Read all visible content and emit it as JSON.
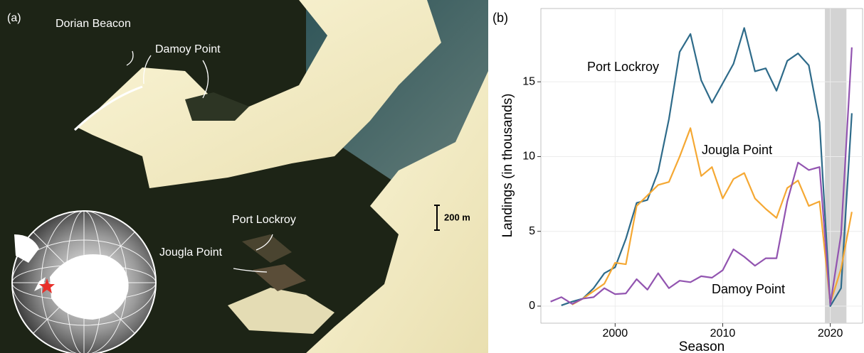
{
  "map_panel": {
    "panel_label": "(a)",
    "labels": [
      "Dorian Beacon",
      "Damoy Point",
      "Port Lockroy",
      "Jougla Point"
    ],
    "scale_bar": "200 m"
  },
  "chart_data": {
    "type": "line",
    "panel_label": "(b)",
    "x_label": "Season",
    "y_label": "Landings (in thousands)",
    "x": [
      1994,
      1995,
      1996,
      1997,
      1998,
      1999,
      2000,
      2001,
      2002,
      2003,
      2004,
      2005,
      2006,
      2007,
      2008,
      2009,
      2010,
      2011,
      2012,
      2013,
      2014,
      2015,
      2016,
      2017,
      2018,
      2019,
      2020,
      2021,
      2022
    ],
    "series": [
      {
        "name": "Port Lockroy",
        "color": "#2e6b8a",
        "values": [
          null,
          0.05,
          0.3,
          0.5,
          1.2,
          2.2,
          2.6,
          4.5,
          6.9,
          7.1,
          9.0,
          12.5,
          17.0,
          18.2,
          15.1,
          13.6,
          14.9,
          16.2,
          18.6,
          15.7,
          15.9,
          14.4,
          16.4,
          16.9,
          16.1,
          12.3,
          0,
          1.2,
          12.9
        ]
      },
      {
        "name": "Jougla Point",
        "color": "#f5a833",
        "values": [
          null,
          null,
          0.1,
          0.5,
          1.0,
          1.5,
          2.9,
          2.8,
          6.7,
          7.4,
          8.1,
          8.3,
          10.0,
          11.9,
          8.7,
          9.3,
          7.2,
          8.5,
          8.9,
          7.2,
          6.5,
          5.9,
          7.9,
          8.4,
          6.7,
          7.0,
          0.2,
          2.5,
          6.3
        ]
      },
      {
        "name": "Damoy Point",
        "color": "#9254b0",
        "values": [
          0.3,
          0.6,
          0.15,
          0.5,
          0.6,
          1.2,
          0.8,
          0.85,
          1.8,
          1.1,
          2.2,
          1.2,
          1.7,
          1.6,
          2.0,
          1.9,
          2.4,
          3.8,
          3.3,
          2.7,
          3.2,
          3.2,
          7.0,
          9.6,
          9.1,
          9.3,
          0.1,
          4.8,
          17.3
        ]
      }
    ],
    "highlight_x": [
      2019.5,
      2021.5
    ],
    "xlim": [
      1993.1,
      2023.0
    ],
    "ylim": [
      -1.14,
      19.9
    ],
    "xticks": [
      2000,
      2010,
      2020
    ],
    "yticks": [
      0,
      5,
      10,
      15
    ],
    "grid": true
  }
}
